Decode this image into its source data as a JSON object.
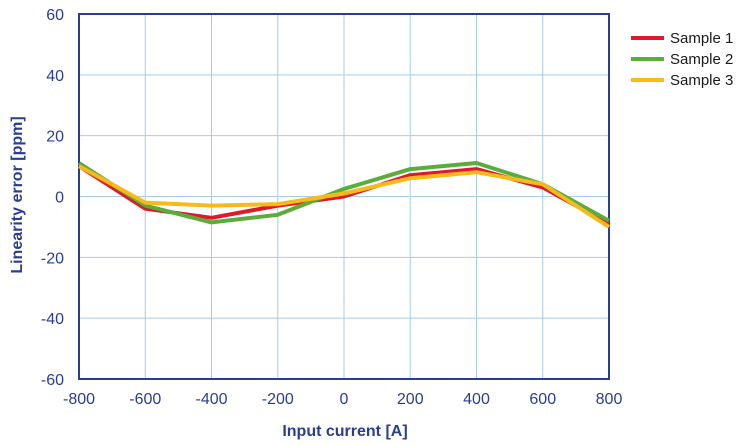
{
  "chart_data": {
    "type": "line",
    "xlabel": "Input current [A]",
    "ylabel": "Linearity error [ppm]",
    "xlim": [
      -800,
      800
    ],
    "ylim": [
      -60,
      60
    ],
    "x_ticks": [
      -800,
      -600,
      -400,
      -200,
      0,
      200,
      400,
      600,
      800
    ],
    "y_ticks": [
      60,
      40,
      20,
      0,
      -20,
      -40,
      -60
    ],
    "grid": true,
    "legend": "right",
    "x": [
      -800,
      -600,
      -400,
      -200,
      0,
      200,
      400,
      600,
      800
    ],
    "series": [
      {
        "name": "Sample 1",
        "color": "#e0182c",
        "values": [
          10,
          -4,
          -7,
          -3,
          0,
          7,
          9,
          3,
          -9
        ]
      },
      {
        "name": "Sample 2",
        "color": "#5aad3a",
        "values": [
          11,
          -3,
          -8.5,
          -6,
          2.5,
          9,
          11,
          4,
          -8
        ]
      },
      {
        "name": "Sample 3",
        "color": "#f6bb1a",
        "values": [
          10,
          -2,
          -3,
          -2.5,
          1,
          6,
          8,
          4,
          -10
        ]
      }
    ]
  }
}
